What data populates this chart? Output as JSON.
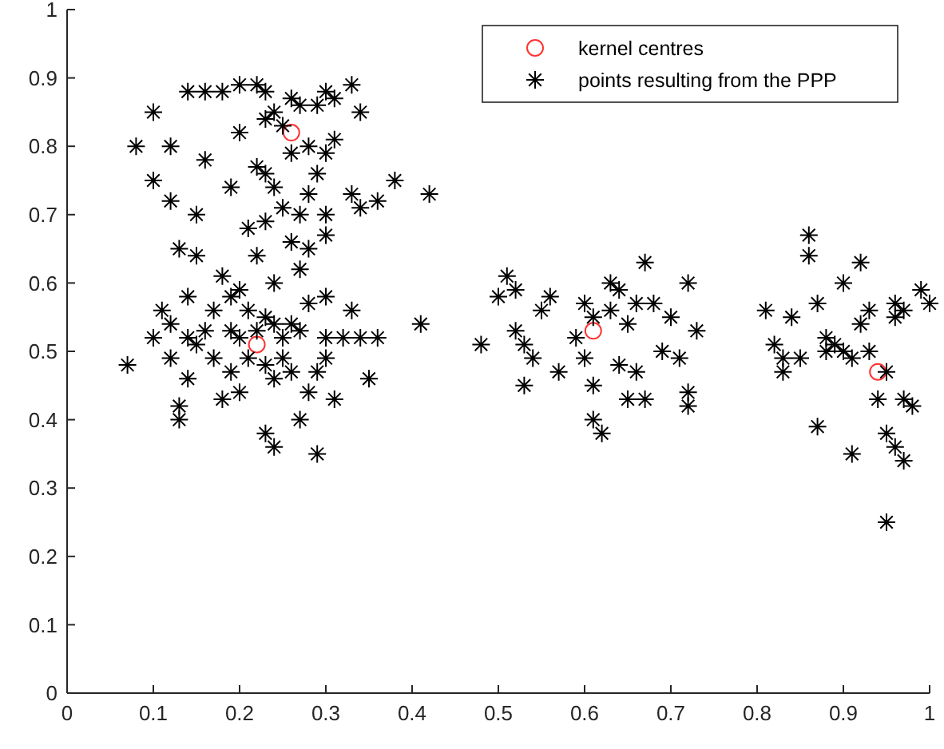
{
  "chart_data": {
    "type": "scatter",
    "xlim": [
      0,
      1
    ],
    "ylim": [
      0,
      1
    ],
    "xticks": [
      0,
      0.1,
      0.2,
      0.3,
      0.4,
      0.5,
      0.6,
      0.7,
      0.8,
      0.9,
      1
    ],
    "yticks": [
      0,
      0.1,
      0.2,
      0.3,
      0.4,
      0.5,
      0.6,
      0.7,
      0.8,
      0.9,
      1
    ],
    "legend": "top right",
    "grid": false,
    "series": [
      {
        "name": "kernel centres",
        "color": "#ff3333",
        "marker": "circle",
        "x": [
          0.26,
          0.22,
          0.61,
          0.94
        ],
        "values": [
          0.82,
          0.51,
          0.53,
          0.47
        ]
      },
      {
        "name": "points resulting from the PPP",
        "color": "#000000",
        "marker": "cross",
        "x": [
          0.1,
          0.08,
          0.1,
          0.12,
          0.12,
          0.13,
          0.15,
          0.16,
          0.16,
          0.18,
          0.2,
          0.22,
          0.23,
          0.2,
          0.19,
          0.21,
          0.22,
          0.23,
          0.24,
          0.25,
          0.26,
          0.26,
          0.27,
          0.28,
          0.29,
          0.3,
          0.31,
          0.3,
          0.31,
          0.29,
          0.28,
          0.27,
          0.25,
          0.24,
          0.23,
          0.22,
          0.24,
          0.27,
          0.28,
          0.3,
          0.33,
          0.34,
          0.34,
          0.33,
          0.36,
          0.38,
          0.42,
          0.23,
          0.26,
          0.3,
          0.14,
          0.07,
          0.1,
          0.11,
          0.12,
          0.12,
          0.13,
          0.13,
          0.14,
          0.14,
          0.15,
          0.14,
          0.15,
          0.18,
          0.17,
          0.19,
          0.2,
          0.2,
          0.21,
          0.22,
          0.23,
          0.24,
          0.25,
          0.25,
          0.27,
          0.19,
          0.2,
          0.21,
          0.23,
          0.24,
          0.26,
          0.28,
          0.29,
          0.3,
          0.31,
          0.23,
          0.24,
          0.29,
          0.27,
          0.32,
          0.33,
          0.34,
          0.36,
          0.35,
          0.3,
          0.18,
          0.17,
          0.16,
          0.28,
          0.3,
          0.41,
          0.26,
          0.19,
          0.48,
          0.5,
          0.51,
          0.52,
          0.52,
          0.53,
          0.53,
          0.54,
          0.55,
          0.56,
          0.57,
          0.59,
          0.6,
          0.61,
          0.6,
          0.61,
          0.61,
          0.62,
          0.63,
          0.63,
          0.64,
          0.64,
          0.65,
          0.65,
          0.66,
          0.67,
          0.68,
          0.69,
          0.7,
          0.71,
          0.72,
          0.72,
          0.73,
          0.72,
          0.66,
          0.67,
          0.81,
          0.82,
          0.83,
          0.83,
          0.84,
          0.85,
          0.86,
          0.86,
          0.87,
          0.87,
          0.88,
          0.88,
          0.89,
          0.9,
          0.9,
          0.91,
          0.92,
          0.92,
          0.93,
          0.93,
          0.94,
          0.95,
          0.95,
          0.96,
          0.96,
          0.97,
          0.97,
          0.98,
          0.99,
          1.0,
          0.97,
          0.95,
          0.91,
          0.96
        ],
        "values": [
          0.85,
          0.8,
          0.75,
          0.8,
          0.72,
          0.65,
          0.7,
          0.78,
          0.88,
          0.88,
          0.89,
          0.89,
          0.88,
          0.82,
          0.74,
          0.68,
          0.77,
          0.84,
          0.85,
          0.83,
          0.79,
          0.87,
          0.86,
          0.8,
          0.86,
          0.88,
          0.87,
          0.79,
          0.81,
          0.76,
          0.73,
          0.7,
          0.71,
          0.74,
          0.69,
          0.64,
          0.6,
          0.62,
          0.65,
          0.7,
          0.73,
          0.71,
          0.85,
          0.89,
          0.72,
          0.75,
          0.73,
          0.76,
          0.66,
          0.67,
          0.88,
          0.48,
          0.52,
          0.56,
          0.49,
          0.54,
          0.42,
          0.4,
          0.46,
          0.52,
          0.51,
          0.58,
          0.64,
          0.61,
          0.56,
          0.58,
          0.59,
          0.52,
          0.56,
          0.53,
          0.55,
          0.54,
          0.52,
          0.49,
          0.53,
          0.47,
          0.44,
          0.49,
          0.48,
          0.46,
          0.47,
          0.44,
          0.47,
          0.49,
          0.43,
          0.38,
          0.36,
          0.35,
          0.4,
          0.52,
          0.56,
          0.52,
          0.52,
          0.46,
          0.52,
          0.43,
          0.49,
          0.53,
          0.57,
          0.58,
          0.54,
          0.54,
          0.53,
          0.51,
          0.58,
          0.61,
          0.59,
          0.53,
          0.51,
          0.45,
          0.49,
          0.56,
          0.58,
          0.47,
          0.52,
          0.57,
          0.55,
          0.49,
          0.45,
          0.4,
          0.38,
          0.56,
          0.6,
          0.59,
          0.48,
          0.54,
          0.43,
          0.57,
          0.63,
          0.57,
          0.5,
          0.55,
          0.49,
          0.44,
          0.6,
          0.53,
          0.42,
          0.47,
          0.43,
          0.56,
          0.51,
          0.47,
          0.49,
          0.55,
          0.49,
          0.67,
          0.64,
          0.57,
          0.39,
          0.52,
          0.5,
          0.51,
          0.6,
          0.5,
          0.35,
          0.54,
          0.63,
          0.56,
          0.5,
          0.43,
          0.38,
          0.25,
          0.36,
          0.57,
          0.43,
          0.34,
          0.42,
          0.59,
          0.57,
          0.56,
          0.47,
          0.49,
          0.55
        ]
      }
    ]
  }
}
